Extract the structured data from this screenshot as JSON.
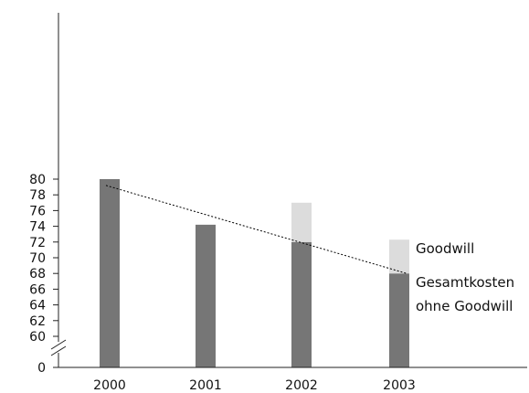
{
  "chart_data": {
    "type": "bar",
    "stacked": true,
    "categories": [
      "2000",
      "2001",
      "2002",
      "2003"
    ],
    "series": [
      {
        "name": "Gesamtkosten ohne Goodwill",
        "label_lines": [
          "Gesamtkosten",
          "ohne Goodwill"
        ],
        "values": [
          80.0,
          74.2,
          72.0,
          68.0
        ],
        "color": "#767676"
      },
      {
        "name": "Goodwill",
        "label_lines": [
          "Goodwill"
        ],
        "values": [
          0,
          0,
          5.0,
          4.3
        ],
        "color": "#dcdcdc"
      }
    ],
    "trendline": {
      "from": [
        "2000",
        79.2
      ],
      "to": [
        "2003",
        68.0
      ],
      "style": "dotted",
      "color": "#000000"
    },
    "y_ticks": [
      "0",
      "60",
      "62",
      "64",
      "66",
      "68",
      "70",
      "72",
      "74",
      "76",
      "78",
      "80"
    ],
    "ylim": [
      60,
      81
    ],
    "axis_break": true,
    "legend": "right, beside last bar",
    "grid": false
  }
}
